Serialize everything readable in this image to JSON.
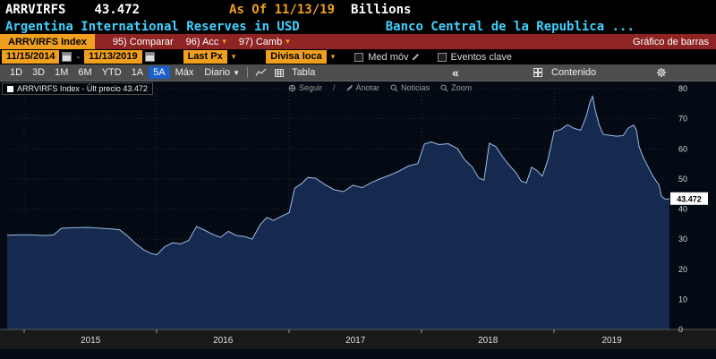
{
  "titlebar": {
    "ticker": "ARRVIRFS",
    "last_value": "43.472",
    "as_of": "As Of 11/13/19",
    "unit": "Billions"
  },
  "subtitle": {
    "description": "Argentina International Reserves in USD",
    "source": "Banco Central de la Republica ..."
  },
  "menubar": {
    "security": "ARRVIRFS Index",
    "items": [
      {
        "label": "95) Comparar"
      },
      {
        "label": "96) Acc"
      },
      {
        "label": "97) Camb"
      }
    ],
    "view_label": "Gráfico de barras"
  },
  "controls": {
    "date_from": "11/15/2014",
    "date_to": "11/13/2019",
    "date_separator": "-",
    "price_field": "Last Px",
    "currency_field": "Divisa loca",
    "mov_avg_label": "Med móv",
    "key_events_label": "Eventos clave"
  },
  "toolbar": {
    "ranges": [
      "1D",
      "3D",
      "1M",
      "6M",
      "YTD",
      "1A",
      "5A",
      "Máx"
    ],
    "selected_range": "5A",
    "period": "Diario",
    "table_label": "Tabla",
    "collapse_label": "«",
    "content_label": "Contenido"
  },
  "chart": {
    "legend": "ARRVIRFS Index - Últ precio 43.472",
    "actions": [
      "Seguir",
      "Anotar",
      "Noticias",
      "Zoom"
    ],
    "last_price_flag": "43.472",
    "colors": {
      "background": "#030a14",
      "area_fill": "#16294f",
      "line": "#9dbde4",
      "grid": "#2c2c2c",
      "amber": "#f0a01e",
      "cyan": "#3fd1ff",
      "selected_blue": "#1b60c8"
    }
  },
  "chart_data": {
    "type": "area",
    "title": "Argentina International Reserves in USD (ARRVIRFS Index)",
    "xlabel": "",
    "ylabel": "Billions USD",
    "ylim": [
      0,
      80
    ],
    "y_ticks": [
      0,
      10,
      20,
      30,
      40,
      50,
      60,
      70,
      80
    ],
    "x_range_decimal_years": [
      2014.87,
      2019.87
    ],
    "x_year_labels": [
      "2015",
      "2016",
      "2017",
      "2018",
      "2019"
    ],
    "grid": true,
    "legend_position": "top-left",
    "last_price": 43.472,
    "series": [
      {
        "name": "ARRVIRFS Index",
        "points": [
          [
            2014.87,
            31.3
          ],
          [
            2014.95,
            31.4
          ],
          [
            2015.05,
            31.4
          ],
          [
            2015.15,
            31.2
          ],
          [
            2015.22,
            31.4
          ],
          [
            2015.28,
            33.6
          ],
          [
            2015.38,
            33.8
          ],
          [
            2015.48,
            33.9
          ],
          [
            2015.58,
            33.6
          ],
          [
            2015.66,
            33.4
          ],
          [
            2015.72,
            33.1
          ],
          [
            2015.78,
            31.0
          ],
          [
            2015.84,
            28.5
          ],
          [
            2015.9,
            26.5
          ],
          [
            2015.96,
            25.2
          ],
          [
            2016.0,
            24.8
          ],
          [
            2016.06,
            27.5
          ],
          [
            2016.12,
            28.8
          ],
          [
            2016.18,
            28.4
          ],
          [
            2016.24,
            29.6
          ],
          [
            2016.3,
            34.2
          ],
          [
            2016.36,
            33.0
          ],
          [
            2016.42,
            31.6
          ],
          [
            2016.48,
            30.6
          ],
          [
            2016.54,
            32.6
          ],
          [
            2016.6,
            31.2
          ],
          [
            2016.66,
            30.9
          ],
          [
            2016.72,
            30.0
          ],
          [
            2016.78,
            34.8
          ],
          [
            2016.83,
            37.2
          ],
          [
            2016.88,
            36.2
          ],
          [
            2016.94,
            37.6
          ],
          [
            2017.0,
            38.8
          ],
          [
            2017.04,
            46.9
          ],
          [
            2017.09,
            48.4
          ],
          [
            2017.14,
            50.5
          ],
          [
            2017.2,
            50.2
          ],
          [
            2017.27,
            48.1
          ],
          [
            2017.34,
            46.4
          ],
          [
            2017.41,
            45.8
          ],
          [
            2017.48,
            47.9
          ],
          [
            2017.55,
            47.1
          ],
          [
            2017.62,
            48.8
          ],
          [
            2017.69,
            50.1
          ],
          [
            2017.76,
            51.3
          ],
          [
            2017.83,
            52.6
          ],
          [
            2017.9,
            54.3
          ],
          [
            2017.97,
            55.1
          ],
          [
            2018.02,
            61.6
          ],
          [
            2018.07,
            62.3
          ],
          [
            2018.13,
            61.4
          ],
          [
            2018.2,
            61.7
          ],
          [
            2018.27,
            60.1
          ],
          [
            2018.32,
            56.6
          ],
          [
            2018.38,
            54.0
          ],
          [
            2018.43,
            50.3
          ],
          [
            2018.47,
            49.6
          ],
          [
            2018.51,
            61.9
          ],
          [
            2018.56,
            60.7
          ],
          [
            2018.61,
            57.4
          ],
          [
            2018.66,
            54.6
          ],
          [
            2018.71,
            52.2
          ],
          [
            2018.75,
            49.3
          ],
          [
            2018.79,
            48.7
          ],
          [
            2018.83,
            53.9
          ],
          [
            2018.87,
            52.8
          ],
          [
            2018.91,
            50.9
          ],
          [
            2018.95,
            56.0
          ],
          [
            2019.0,
            65.8
          ],
          [
            2019.05,
            66.4
          ],
          [
            2019.1,
            68.0
          ],
          [
            2019.15,
            66.8
          ],
          [
            2019.2,
            66.2
          ],
          [
            2019.24,
            70.6
          ],
          [
            2019.27,
            75.6
          ],
          [
            2019.29,
            77.4
          ],
          [
            2019.31,
            72.8
          ],
          [
            2019.34,
            67.8
          ],
          [
            2019.37,
            64.8
          ],
          [
            2019.42,
            64.5
          ],
          [
            2019.47,
            64.2
          ],
          [
            2019.52,
            64.4
          ],
          [
            2019.56,
            66.9
          ],
          [
            2019.6,
            67.9
          ],
          [
            2019.62,
            66.3
          ],
          [
            2019.64,
            60.8
          ],
          [
            2019.67,
            57.4
          ],
          [
            2019.7,
            54.8
          ],
          [
            2019.73,
            52.1
          ],
          [
            2019.76,
            49.9
          ],
          [
            2019.79,
            48.1
          ],
          [
            2019.81,
            44.2
          ],
          [
            2019.83,
            43.5
          ],
          [
            2019.85,
            43.2
          ],
          [
            2019.87,
            43.472
          ]
        ]
      }
    ]
  }
}
